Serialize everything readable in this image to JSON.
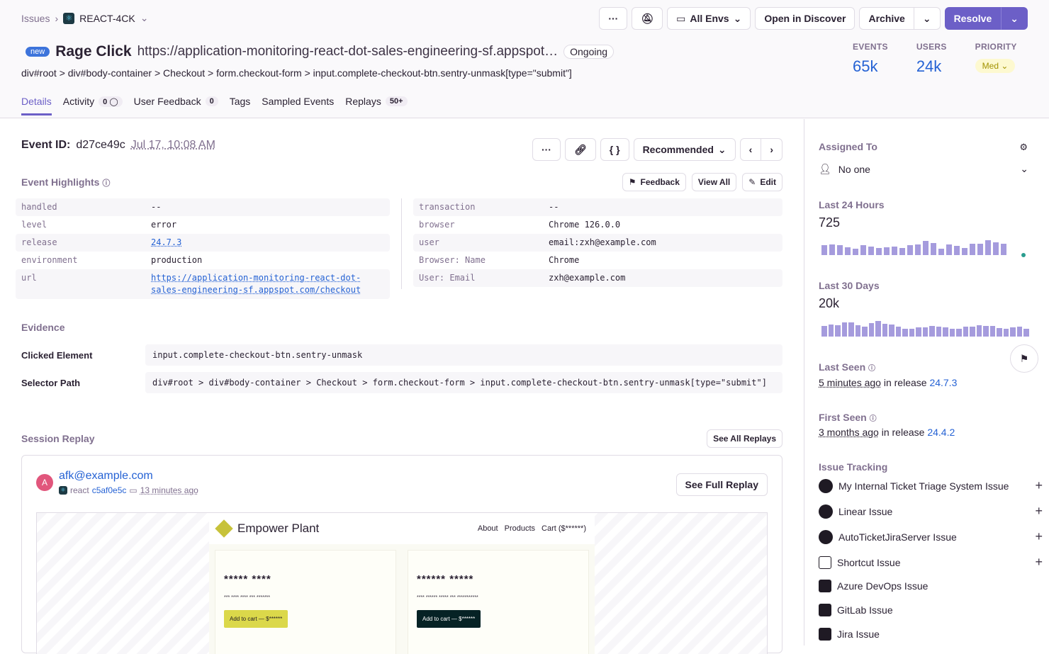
{
  "breadcrumb": {
    "root": "Issues",
    "project": "REACT-4CK"
  },
  "toolbar": {
    "more": "···",
    "envs": "All Envs",
    "discover": "Open in Discover",
    "archive": "Archive",
    "resolve": "Resolve"
  },
  "issue": {
    "badge": "new",
    "type": "Rage Click",
    "url": "https://application-monitoring-react-dot-sales-engineering-sf.appspot…",
    "status": "Ongoing",
    "selector": "div#root > div#body-container > Checkout > form.checkout-form > input.complete-checkout-btn.sentry-unmask[type=\"submit\"]"
  },
  "stats": {
    "events_label": "EVENTS",
    "events": "65k",
    "users_label": "USERS",
    "users": "24k",
    "priority_label": "PRIORITY",
    "priority": "Med"
  },
  "tabs": [
    {
      "label": "Details"
    },
    {
      "label": "Activity",
      "count": "0"
    },
    {
      "label": "User Feedback",
      "count": "0"
    },
    {
      "label": "Tags"
    },
    {
      "label": "Sampled Events"
    },
    {
      "label": "Replays",
      "count": "50+"
    }
  ],
  "event": {
    "id_label": "Event ID:",
    "id": "d27ce49c",
    "time": "Jul 17, 10:08 AM",
    "recommended": "Recommended"
  },
  "highlights": {
    "title": "Event Highlights",
    "feedback": "Feedback",
    "view_all": "View All",
    "edit": "Edit",
    "left": [
      {
        "k": "handled",
        "v": "--"
      },
      {
        "k": "level",
        "v": "error"
      },
      {
        "k": "release",
        "v": "24.7.3"
      },
      {
        "k": "environment",
        "v": "production"
      },
      {
        "k": "url",
        "v": "https://application-monitoring-react-dot-sales-engineering-sf.appspot.com/checkout"
      }
    ],
    "right": [
      {
        "k": "transaction",
        "v": "--"
      },
      {
        "k": "browser",
        "v": "Chrome 126.0.0"
      },
      {
        "k": "user",
        "v": "email:zxh@example.com"
      },
      {
        "k": "Browser: Name",
        "v": "Chrome"
      },
      {
        "k": "User: Email",
        "v": "zxh@example.com"
      }
    ]
  },
  "evidence": {
    "title": "Evidence",
    "clicked_label": "Clicked Element",
    "clicked": "input.complete-checkout-btn.sentry-unmask",
    "path_label": "Selector Path",
    "path": "div#root > div#body-container > Checkout > form.checkout-form > input.complete-checkout-btn.sentry-unmask[type=\"submit\"]"
  },
  "replay": {
    "title": "Session Replay",
    "see_all": "See All Replays",
    "user": "afk@example.com",
    "avatar": "A",
    "platform": "react",
    "replay_id": "c5af0e5c",
    "ago": "13 minutes ago",
    "full": "See Full Replay",
    "site": {
      "brand": "Empower Plant",
      "nav": [
        "About",
        "Products",
        "Cart ($******)"
      ],
      "cards": [
        {
          "title": "***** ****",
          "desc": "*** **** **** *** *******",
          "btn": "Add to cart — $******"
        },
        {
          "title": "****** *****",
          "desc": "**** ****** ***** *** ***********",
          "btn": "Add to cart — $******"
        }
      ]
    }
  },
  "sidebar": {
    "assigned_label": "Assigned To",
    "assigned": "No one",
    "last24_label": "Last 24 Hours",
    "last24": "725",
    "last30_label": "Last 30 Days",
    "last30": "20k",
    "last_seen_label": "Last Seen",
    "last_seen": "5 minutes ago",
    "last_seen_mid": "in release",
    "last_seen_rel": "24.7.3",
    "first_seen_label": "First Seen",
    "first_seen": "3 months ago",
    "first_seen_mid": "in release",
    "first_seen_rel": "24.4.2",
    "tracking_label": "Issue Tracking",
    "tracking": [
      {
        "label": "My Internal Ticket Triage System Issue",
        "plus": true
      },
      {
        "label": "Linear Issue",
        "plus": true
      },
      {
        "label": "AutoTicketJiraServer Issue",
        "plus": true
      },
      {
        "label": "Shortcut Issue",
        "plus": true
      },
      {
        "label": "Azure DevOps Issue"
      },
      {
        "label": "GitLab Issue"
      },
      {
        "label": "Jira Issue"
      }
    ]
  },
  "spark24": [
    14,
    15,
    14,
    11,
    9,
    14,
    12,
    10,
    11,
    12,
    10,
    14,
    15,
    20,
    17,
    9,
    15,
    13,
    10,
    16,
    16,
    21,
    18,
    16
  ],
  "spark30": [
    16,
    18,
    17,
    21,
    21,
    17,
    15,
    20,
    23,
    19,
    18,
    15,
    11,
    11,
    14,
    14,
    16,
    15,
    14,
    12,
    12,
    15,
    15,
    17,
    16,
    16,
    13,
    11,
    14,
    15,
    12
  ],
  "colors": {
    "accent": "#6c5fc7",
    "link": "#2562d4",
    "bar": "#a59bdd"
  }
}
